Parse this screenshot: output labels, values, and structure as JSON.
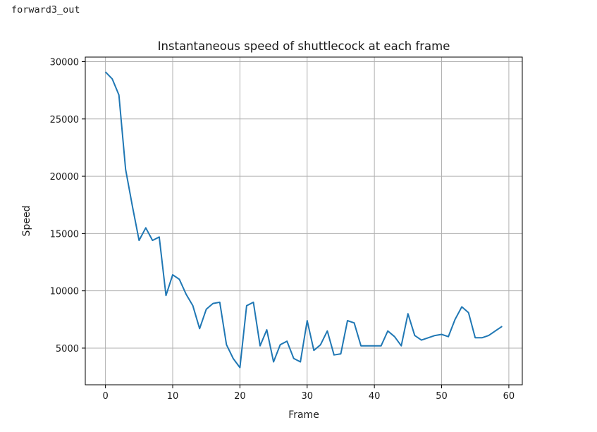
{
  "cell": {
    "output_label": "forward3_out"
  },
  "chart_data": {
    "type": "line",
    "title": "Instantaneous speed of shuttlecock at each frame",
    "xlabel": "Frame",
    "ylabel": "Speed",
    "xlim": [
      -3,
      62
    ],
    "ylim": [
      1800,
      30400
    ],
    "xticks": [
      0,
      10,
      20,
      30,
      40,
      50,
      60
    ],
    "yticks": [
      5000,
      10000,
      15000,
      20000,
      25000,
      30000
    ],
    "grid": true,
    "series": [
      {
        "color": "#1f77b4",
        "x": [
          0,
          1,
          2,
          3,
          4,
          5,
          6,
          7,
          8,
          9,
          10,
          11,
          12,
          13,
          14,
          15,
          16,
          17,
          18,
          19,
          20,
          21,
          22,
          23,
          24,
          25,
          26,
          27,
          28,
          29,
          30,
          31,
          32,
          33,
          34,
          35,
          36,
          37,
          38,
          39,
          40,
          41,
          42,
          43,
          44,
          45,
          46,
          47,
          48,
          49,
          50,
          51,
          52,
          53,
          54,
          55,
          56,
          57,
          58,
          59
        ],
        "values": [
          29100,
          28500,
          27100,
          20600,
          17400,
          14400,
          15500,
          14400,
          14700,
          9600,
          11400,
          11000,
          9700,
          8700,
          6700,
          8400,
          8900,
          9000,
          5300,
          4100,
          3300,
          8700,
          9000,
          5200,
          6600,
          3800,
          5300,
          5600,
          4100,
          3800,
          7400,
          4800,
          5300,
          6500,
          4400,
          4500,
          7400,
          7200,
          5200,
          5200,
          5200,
          5200,
          6500,
          6000,
          5200,
          8000,
          6100,
          5700,
          5900,
          6100,
          6200,
          6000,
          7500,
          8600,
          8100,
          5900,
          5900,
          6100,
          6500,
          6900
        ]
      }
    ]
  }
}
